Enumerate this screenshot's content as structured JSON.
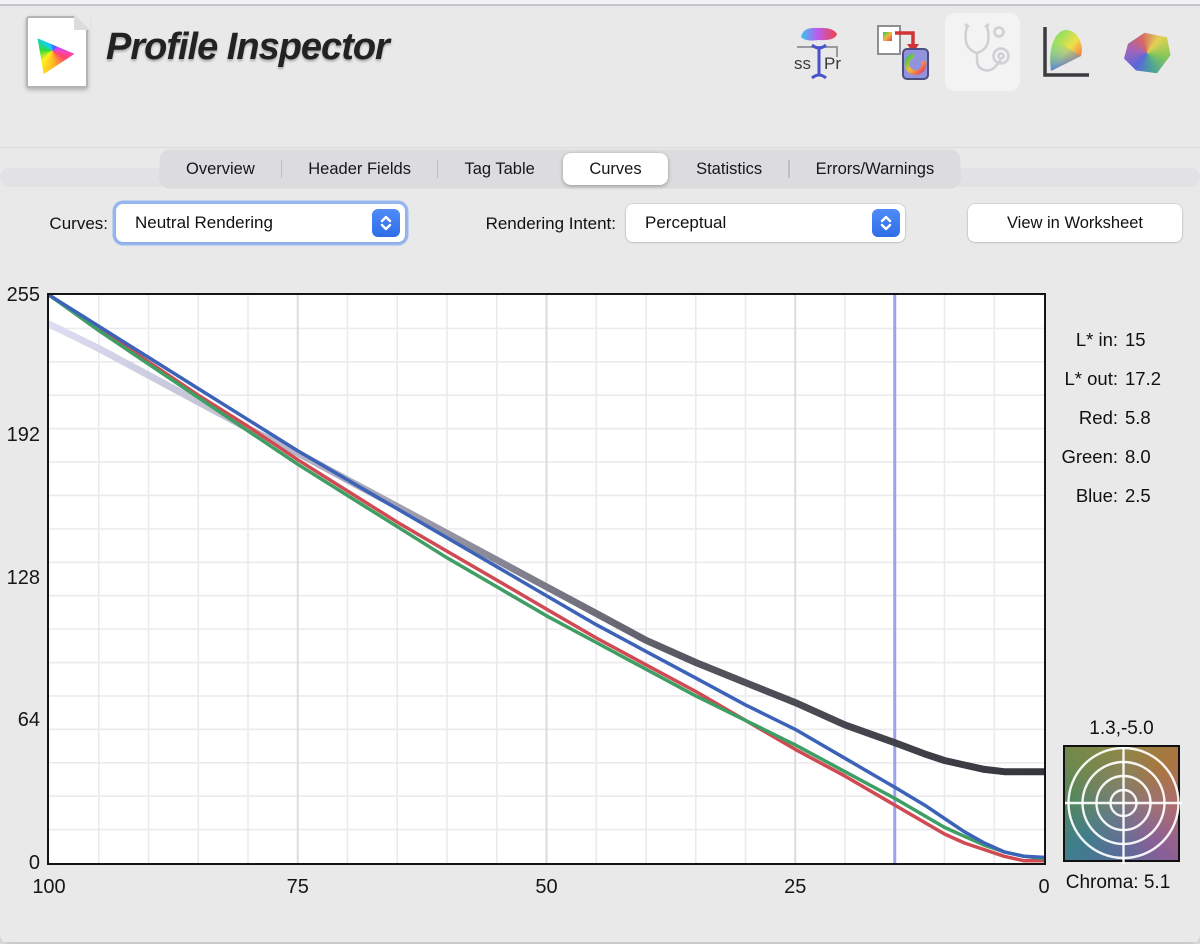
{
  "window": {
    "title": "Profile Inspector"
  },
  "toolbar": {
    "icons": [
      {
        "name": "rename-profile",
        "text_left": "ss",
        "text_right": "Pr"
      },
      {
        "name": "assign-profile",
        "glyph": "C"
      },
      {
        "name": "profile-doctor",
        "disabled": true
      },
      {
        "name": "chromaticity-diagram"
      },
      {
        "name": "gamut-3d"
      }
    ]
  },
  "tabs": {
    "items": [
      "Overview",
      "Header Fields",
      "Tag Table",
      "Curves",
      "Statistics",
      "Errors/Warnings"
    ],
    "selected": "Curves"
  },
  "controls": {
    "curves_label": "Curves:",
    "curves_value": "Neutral Rendering",
    "intent_label": "Rendering Intent:",
    "intent_value": "Perceptual",
    "worksheet_button": "View in Worksheet"
  },
  "readouts": [
    {
      "label": "L* in:",
      "value": "15"
    },
    {
      "label": "L* out:",
      "value": "17.2"
    },
    {
      "label": "Red:",
      "value": "5.8"
    },
    {
      "label": "Green:",
      "value": "8.0"
    },
    {
      "label": "Blue:",
      "value": "2.5"
    }
  ],
  "chroma": {
    "ab_label": "1.3,-5.0",
    "label": "Chroma:",
    "value": "5.1"
  },
  "colors": {
    "accent_blue": "#3478f6",
    "cursor_line": "#9aa3ee",
    "red_curve": "#cf4a52",
    "green_curve": "#3f9e63",
    "blue_curve": "#3c63b8",
    "neutral_curve_start": "#dedef2",
    "neutral_curve_end": "#35353d"
  },
  "chart_data": {
    "type": "line",
    "title": "",
    "xlabel": "",
    "ylabel": "",
    "xlim": [
      100,
      0
    ],
    "ylim": [
      0,
      255
    ],
    "x_ticks": [
      100,
      75,
      50,
      25,
      0
    ],
    "y_ticks": [
      255,
      192,
      128,
      64,
      0
    ],
    "x_grid_step": 5,
    "y_grid_step": 15,
    "grid": true,
    "cursor_x": 15,
    "series": [
      {
        "name": "neutral-lightness",
        "width": 7,
        "gradient": [
          "#dedef2",
          "#a7a7b8",
          "#55555f",
          "#35353d"
        ],
        "points": [
          [
            100,
            242
          ],
          [
            95,
            231
          ],
          [
            90,
            219
          ],
          [
            85,
            207
          ],
          [
            80,
            195
          ],
          [
            75,
            184
          ],
          [
            70,
            172
          ],
          [
            65,
            160
          ],
          [
            60,
            148
          ],
          [
            55,
            136
          ],
          [
            50,
            124
          ],
          [
            45,
            112
          ],
          [
            40,
            100
          ],
          [
            35,
            90
          ],
          [
            30,
            81
          ],
          [
            25,
            72
          ],
          [
            20,
            62
          ],
          [
            15,
            54
          ],
          [
            12,
            49
          ],
          [
            10,
            46
          ],
          [
            8,
            44
          ],
          [
            6,
            42
          ],
          [
            4,
            41
          ],
          [
            2,
            41
          ],
          [
            0,
            41
          ]
        ]
      },
      {
        "name": "red",
        "color": "#cf4a52",
        "width": 3.5,
        "points": [
          [
            100,
            255
          ],
          [
            95,
            240
          ],
          [
            90,
            225
          ],
          [
            85,
            210
          ],
          [
            80,
            196
          ],
          [
            75,
            181
          ],
          [
            70,
            167
          ],
          [
            65,
            153
          ],
          [
            60,
            140
          ],
          [
            55,
            127
          ],
          [
            50,
            114
          ],
          [
            45,
            101
          ],
          [
            40,
            89
          ],
          [
            35,
            77
          ],
          [
            30,
            64
          ],
          [
            25,
            51
          ],
          [
            20,
            39
          ],
          [
            15,
            26
          ],
          [
            10,
            13
          ],
          [
            8,
            9
          ],
          [
            6,
            6
          ],
          [
            4,
            3
          ],
          [
            2,
            1
          ],
          [
            0,
            1
          ]
        ]
      },
      {
        "name": "green",
        "color": "#3f9e63",
        "width": 3.5,
        "points": [
          [
            100,
            255
          ],
          [
            95,
            239
          ],
          [
            90,
            224
          ],
          [
            85,
            209
          ],
          [
            80,
            194
          ],
          [
            75,
            179
          ],
          [
            70,
            165
          ],
          [
            65,
            151
          ],
          [
            60,
            137
          ],
          [
            55,
            124
          ],
          [
            50,
            111
          ],
          [
            45,
            99
          ],
          [
            40,
            87
          ],
          [
            35,
            75
          ],
          [
            30,
            64
          ],
          [
            25,
            53
          ],
          [
            20,
            41
          ],
          [
            15,
            29
          ],
          [
            10,
            16
          ],
          [
            8,
            12
          ],
          [
            6,
            8
          ],
          [
            4,
            5
          ],
          [
            2,
            3
          ],
          [
            0,
            2
          ]
        ]
      },
      {
        "name": "blue",
        "color": "#3c63b8",
        "width": 3.5,
        "points": [
          [
            100,
            255
          ],
          [
            95,
            241
          ],
          [
            90,
            227
          ],
          [
            85,
            213
          ],
          [
            80,
            199
          ],
          [
            75,
            185
          ],
          [
            70,
            172
          ],
          [
            65,
            159
          ],
          [
            60,
            146
          ],
          [
            55,
            133
          ],
          [
            50,
            120
          ],
          [
            45,
            107
          ],
          [
            40,
            95
          ],
          [
            35,
            83
          ],
          [
            30,
            71
          ],
          [
            25,
            60
          ],
          [
            20,
            47
          ],
          [
            15,
            34
          ],
          [
            12,
            26
          ],
          [
            10,
            20
          ],
          [
            8,
            14
          ],
          [
            6,
            9
          ],
          [
            4,
            5
          ],
          [
            2,
            3
          ],
          [
            0,
            2.5
          ]
        ]
      }
    ]
  }
}
